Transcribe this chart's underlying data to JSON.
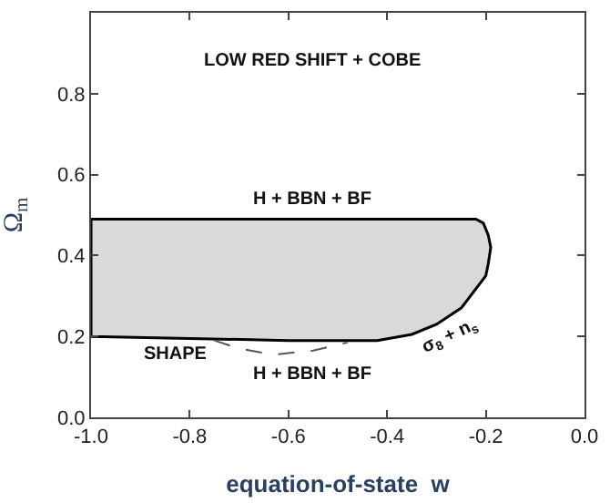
{
  "chart_data": {
    "type": "area",
    "xlabel": "equation-of-state  w",
    "ylabel": "Ω$_{m}$",
    "xlim": [
      -1.0,
      0.0
    ],
    "xticks": [
      {
        "value": -1.0,
        "label": "-1.0"
      },
      -0.8,
      -0.6,
      -0.4,
      -0.2,
      {
        "value": 0.0,
        "label": "0.0"
      }
    ],
    "ylim": [
      0.0,
      1.0
    ],
    "yticks": [
      {
        "value": 0.0,
        "label": "0.0"
      },
      0.2,
      0.4,
      0.6,
      0.8
    ],
    "series": [
      {
        "color": "#d9d9d9",
        "x": [
          -1.0,
          -0.6,
          -0.22,
          -0.205,
          -0.195,
          -0.19,
          -0.195,
          -0.2,
          -0.25,
          -0.3,
          -0.35,
          -0.42,
          -0.6,
          -0.8,
          -1.0,
          -1.0
        ],
        "values": [
          0.49,
          0.49,
          0.49,
          0.48,
          0.45,
          0.42,
          0.38,
          0.35,
          0.27,
          0.23,
          0.205,
          0.19,
          0.19,
          0.195,
          0.2,
          0.49
        ]
      },
      {
        "type": "line",
        "line_style": "dashed",
        "color": "#555555",
        "x": [
          -0.75,
          -0.7,
          -0.63,
          -0.55,
          -0.48
        ],
        "values": [
          0.19,
          0.17,
          0.155,
          0.165,
          0.185
        ]
      }
    ],
    "annotations": [
      "LOW RED SHIFT + COBE",
      "H + BBN + BF",
      "SHAPE",
      "H + BBN + BF",
      "σ$_{8}$ + n$_{s}$"
    ]
  }
}
